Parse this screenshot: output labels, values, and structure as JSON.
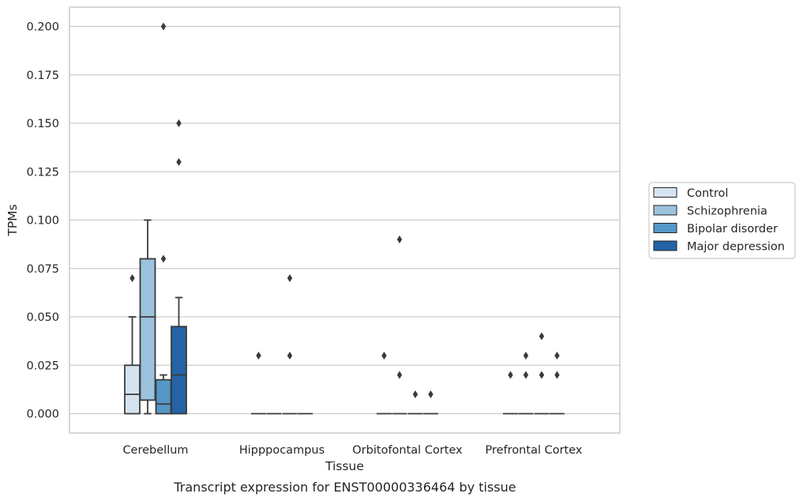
{
  "caption": "Transcript expression for ENST00000336464 by tissue",
  "colors": {
    "Control": "#d5e3f0",
    "Schizophrenia": "#9bc3de",
    "Bipolar disorder": "#5597c6",
    "Major depression": "#2363a6",
    "outline": "#3a3a3a",
    "grid": "#cccccc",
    "frame": "#cccccc"
  },
  "chart_data": {
    "type": "box",
    "xlabel": "Tissue",
    "ylabel": "TPMs",
    "ylim": [
      -0.01,
      0.21
    ],
    "yticks": [
      "0.000",
      "0.025",
      "0.050",
      "0.075",
      "0.100",
      "0.125",
      "0.150",
      "0.175",
      "0.200"
    ],
    "categories": [
      "Cerebellum",
      "Hipppocampus",
      "Orbitofontal Cortex",
      "Prefrontal Cortex"
    ],
    "legend_position": "right",
    "grid": true,
    "series": [
      {
        "name": "Control",
        "boxes": [
          {
            "q1": 0.0,
            "median": 0.01,
            "q3": 0.025,
            "whisker_low": 0.0,
            "whisker_high": 0.05,
            "outliers": [
              0.07
            ]
          },
          {
            "q1": 0.0,
            "median": 0.0,
            "q3": 0.0,
            "whisker_low": 0.0,
            "whisker_high": 0.0,
            "outliers": [
              0.03
            ]
          },
          {
            "q1": 0.0,
            "median": 0.0,
            "q3": 0.0,
            "whisker_low": 0.0,
            "whisker_high": 0.0,
            "outliers": [
              0.03
            ]
          },
          {
            "q1": 0.0,
            "median": 0.0,
            "q3": 0.0,
            "whisker_low": 0.0,
            "whisker_high": 0.0,
            "outliers": [
              0.02
            ]
          }
        ]
      },
      {
        "name": "Schizophrenia",
        "boxes": [
          {
            "q1": 0.007,
            "median": 0.05,
            "q3": 0.08,
            "whisker_low": 0.0,
            "whisker_high": 0.1,
            "outliers": []
          },
          {
            "q1": 0.0,
            "median": 0.0,
            "q3": 0.0,
            "whisker_low": 0.0,
            "whisker_high": 0.0,
            "outliers": []
          },
          {
            "q1": 0.0,
            "median": 0.0,
            "q3": 0.0,
            "whisker_low": 0.0,
            "whisker_high": 0.0,
            "outliers": [
              0.09,
              0.02
            ]
          },
          {
            "q1": 0.0,
            "median": 0.0,
            "q3": 0.0,
            "whisker_low": 0.0,
            "whisker_high": 0.0,
            "outliers": [
              0.03,
              0.02
            ]
          }
        ]
      },
      {
        "name": "Bipolar disorder",
        "boxes": [
          {
            "q1": 0.0,
            "median": 0.005,
            "q3": 0.0175,
            "whisker_low": 0.0,
            "whisker_high": 0.02,
            "outliers": [
              0.2,
              0.08
            ]
          },
          {
            "q1": 0.0,
            "median": 0.0,
            "q3": 0.0,
            "whisker_low": 0.0,
            "whisker_high": 0.0,
            "outliers": [
              0.07,
              0.03
            ]
          },
          {
            "q1": 0.0,
            "median": 0.0,
            "q3": 0.0,
            "whisker_low": 0.0,
            "whisker_high": 0.0,
            "outliers": [
              0.01
            ]
          },
          {
            "q1": 0.0,
            "median": 0.0,
            "q3": 0.0,
            "whisker_low": 0.0,
            "whisker_high": 0.0,
            "outliers": [
              0.04,
              0.02
            ]
          }
        ]
      },
      {
        "name": "Major depression",
        "boxes": [
          {
            "q1": 0.0,
            "median": 0.02,
            "q3": 0.045,
            "whisker_low": 0.0,
            "whisker_high": 0.06,
            "outliers": [
              0.15,
              0.13
            ]
          },
          {
            "q1": 0.0,
            "median": 0.0,
            "q3": 0.0,
            "whisker_low": 0.0,
            "whisker_high": 0.0,
            "outliers": []
          },
          {
            "q1": 0.0,
            "median": 0.0,
            "q3": 0.0,
            "whisker_low": 0.0,
            "whisker_high": 0.0,
            "outliers": [
              0.01
            ]
          },
          {
            "q1": 0.0,
            "median": 0.0,
            "q3": 0.0,
            "whisker_low": 0.0,
            "whisker_high": 0.0,
            "outliers": [
              0.03,
              0.02
            ]
          }
        ]
      }
    ]
  }
}
